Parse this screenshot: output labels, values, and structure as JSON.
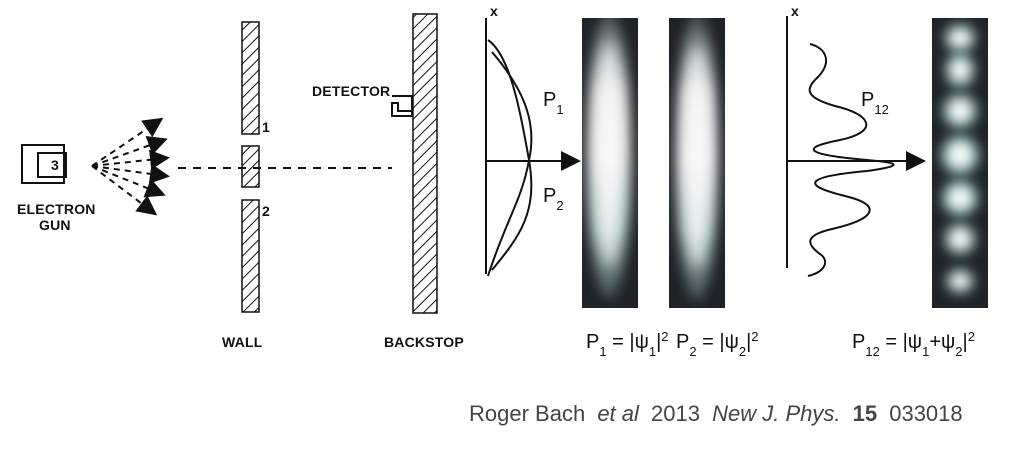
{
  "diagram": {
    "labels": {
      "electron_gun_line1": "ELECTRON",
      "electron_gun_line2": "GUN",
      "gun_cell": "3",
      "slit1": "1",
      "slit2": "2",
      "detector": "DETECTOR",
      "wall": "WALL",
      "backstop": "BACKSTOP",
      "x_axis_left": "x",
      "x_axis_right": "x"
    },
    "curves": {
      "p1": "P1",
      "p2": "P2",
      "p12": "P12"
    },
    "formulas": {
      "p1": "P1 = |ψ1|²",
      "p2": "P2 = |ψ2|²",
      "p12": "P12 = |ψ1+ψ2|²"
    }
  },
  "citation": {
    "author": "Roger Bach",
    "etal": "et al",
    "year": "2013",
    "journal": "New J. Phys.",
    "volume": "15",
    "article": "033018"
  },
  "colors": {
    "ink": "#111111",
    "citation": "#444444",
    "panel_bg": "#1f2328",
    "glow": "#f5fffb",
    "glow_edge": "#7fdad4"
  }
}
